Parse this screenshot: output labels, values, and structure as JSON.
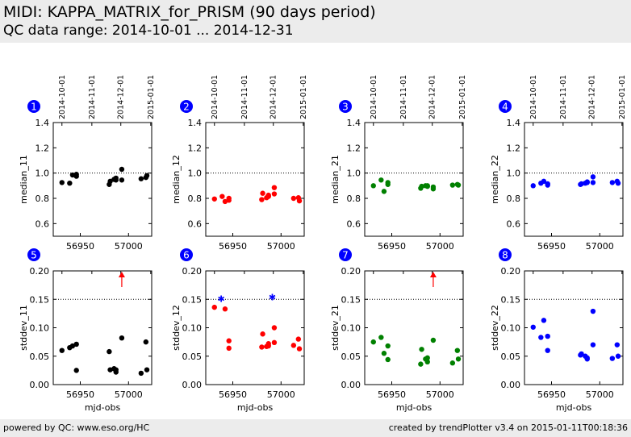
{
  "header": {
    "title": "MIDI: KAPPA_MATRIX_for_PRISM (90 days period)",
    "subtitle": "QC data range: 2014-10-01 ... 2014-12-31"
  },
  "footer": {
    "left": "powered by QC: www.eso.org/HC",
    "right": "created by trendPlotter v3.4 on 2015-01-11T00:18:36"
  },
  "colors": {
    "black": "#000000",
    "red": "#ff0000",
    "green": "#008000",
    "blue": "#0000ff",
    "badge": "#0000ff"
  },
  "top_axis_dates": [
    {
      "label": "2014-10-01",
      "mjd": 56931
    },
    {
      "label": "2014-11-01",
      "mjd": 56962
    },
    {
      "label": "2014-12-01",
      "mjd": 56992
    },
    {
      "label": "2015-01-01",
      "mjd": 57023
    }
  ],
  "chart_data": [
    {
      "type": "scatter",
      "panel": "1",
      "ylabel": "median_11",
      "xlabel": "",
      "color": "#000000",
      "xlim": [
        56922,
        57024
      ],
      "ylim": [
        0.5,
        1.4
      ],
      "yticks": [
        0.6,
        0.8,
        1.0,
        1.2,
        1.4
      ],
      "xticks": [
        56950,
        57000
      ],
      "x": [
        56931,
        56939,
        56942,
        56946,
        56946,
        56980,
        56981,
        56985,
        56987,
        56987,
        56993,
        56993,
        57013,
        57018,
        57019
      ],
      "y": [
        0.925,
        0.92,
        0.985,
        0.99,
        0.975,
        0.91,
        0.935,
        0.95,
        0.96,
        0.945,
        1.03,
        0.945,
        0.955,
        0.965,
        0.98
      ]
    },
    {
      "type": "scatter",
      "panel": "2",
      "ylabel": "median_12",
      "xlabel": "",
      "color": "#ff0000",
      "xlim": [
        56922,
        57024
      ],
      "ylim": [
        0.5,
        1.4
      ],
      "yticks": [
        0.6,
        0.8,
        1.0,
        1.2,
        1.4
      ],
      "xticks": [
        56950,
        57000
      ],
      "x": [
        56931,
        56939,
        56942,
        56946,
        56946,
        56980,
        56981,
        56985,
        56987,
        56987,
        56993,
        56993,
        57013,
        57018,
        57019
      ],
      "y": [
        0.795,
        0.815,
        0.775,
        0.8,
        0.785,
        0.79,
        0.84,
        0.805,
        0.815,
        0.825,
        0.885,
        0.835,
        0.8,
        0.805,
        0.78
      ]
    },
    {
      "type": "scatter",
      "panel": "3",
      "ylabel": "median_21",
      "xlabel": "",
      "color": "#008000",
      "xlim": [
        56922,
        57024
      ],
      "ylim": [
        0.5,
        1.4
      ],
      "yticks": [
        0.6,
        0.8,
        1.0,
        1.2,
        1.4
      ],
      "xticks": [
        56950,
        57000
      ],
      "x": [
        56931,
        56939,
        56942,
        56946,
        56946,
        56980,
        56981,
        56985,
        56987,
        56987,
        56993,
        56993,
        57013,
        57018,
        57019
      ],
      "y": [
        0.9,
        0.945,
        0.855,
        0.925,
        0.91,
        0.88,
        0.895,
        0.9,
        0.895,
        0.9,
        0.875,
        0.89,
        0.905,
        0.91,
        0.905
      ]
    },
    {
      "type": "scatter",
      "panel": "4",
      "ylabel": "median_22",
      "xlabel": "",
      "color": "#0000ff",
      "xlim": [
        56922,
        57024
      ],
      "ylim": [
        0.5,
        1.4
      ],
      "yticks": [
        0.6,
        0.8,
        1.0,
        1.2,
        1.4
      ],
      "xticks": [
        56950,
        57000
      ],
      "x": [
        56931,
        56939,
        56942,
        56946,
        56946,
        56980,
        56981,
        56985,
        56987,
        56987,
        56993,
        56993,
        57013,
        57018,
        57019
      ],
      "y": [
        0.9,
        0.92,
        0.935,
        0.915,
        0.905,
        0.91,
        0.915,
        0.92,
        0.925,
        0.93,
        0.97,
        0.925,
        0.925,
        0.935,
        0.92
      ]
    },
    {
      "type": "scatter",
      "panel": "5",
      "ylabel": "stddev_11",
      "xlabel": "mjd-obs",
      "color": "#000000",
      "xlim": [
        56922,
        57024
      ],
      "ylim": [
        0,
        0.2
      ],
      "yticks": [
        0.0,
        0.05,
        0.1,
        0.15,
        0.2
      ],
      "xticks": [
        56950,
        57000
      ],
      "x": [
        56931,
        56939,
        56942,
        56946,
        56946,
        56980,
        56981,
        56985,
        56987,
        56987,
        56993,
        57013,
        57018,
        57019
      ],
      "y": [
        0.06,
        0.065,
        0.068,
        0.071,
        0.025,
        0.058,
        0.026,
        0.028,
        0.026,
        0.022,
        0.082,
        0.02,
        0.075,
        0.026
      ],
      "offscale_x": [
        56993
      ]
    },
    {
      "type": "scatter",
      "panel": "6",
      "ylabel": "stddev_12",
      "xlabel": "mjd-obs",
      "color": "#ff0000",
      "xlim": [
        56922,
        57024
      ],
      "ylim": [
        0,
        0.2
      ],
      "yticks": [
        0.0,
        0.05,
        0.1,
        0.15,
        0.2
      ],
      "xticks": [
        56950,
        57000
      ],
      "x": [
        56931,
        56942,
        56946,
        56946,
        56980,
        56981,
        56985,
        56987,
        56987,
        56993,
        56993,
        57013,
        57018,
        57019
      ],
      "y": [
        0.136,
        0.133,
        0.077,
        0.064,
        0.066,
        0.089,
        0.067,
        0.072,
        0.068,
        0.1,
        0.074,
        0.069,
        0.08,
        0.063
      ],
      "star_x": [
        56938,
        56991
      ],
      "star_y": [
        0.151,
        0.154
      ],
      "star_color": "#0000ff"
    },
    {
      "type": "scatter",
      "panel": "7",
      "ylabel": "stddev_21",
      "xlabel": "mjd-obs",
      "color": "#008000",
      "xlim": [
        56922,
        57024
      ],
      "ylim": [
        0,
        0.2
      ],
      "yticks": [
        0.0,
        0.05,
        0.1,
        0.15,
        0.2
      ],
      "xticks": [
        56950,
        57000
      ],
      "x": [
        56931,
        56939,
        56942,
        56946,
        56946,
        56980,
        56981,
        56985,
        56987,
        56987,
        56993,
        57013,
        57018,
        57019
      ],
      "y": [
        0.075,
        0.083,
        0.055,
        0.068,
        0.044,
        0.036,
        0.062,
        0.045,
        0.047,
        0.04,
        0.078,
        0.038,
        0.06,
        0.045
      ],
      "offscale_x": [
        56993
      ]
    },
    {
      "type": "scatter",
      "panel": "8",
      "ylabel": "stddev_22",
      "xlabel": "mjd-obs",
      "color": "#0000ff",
      "xlim": [
        56922,
        57024
      ],
      "ylim": [
        0,
        0.2
      ],
      "yticks": [
        0.0,
        0.05,
        0.1,
        0.15,
        0.2
      ],
      "xticks": [
        56950,
        57000
      ],
      "x": [
        56931,
        56939,
        56942,
        56946,
        56946,
        56980,
        56981,
        56985,
        56987,
        56987,
        56993,
        56993,
        57013,
        57018,
        57019
      ],
      "y": [
        0.101,
        0.083,
        0.113,
        0.085,
        0.06,
        0.052,
        0.054,
        0.05,
        0.047,
        0.045,
        0.129,
        0.07,
        0.046,
        0.07,
        0.05
      ]
    }
  ]
}
